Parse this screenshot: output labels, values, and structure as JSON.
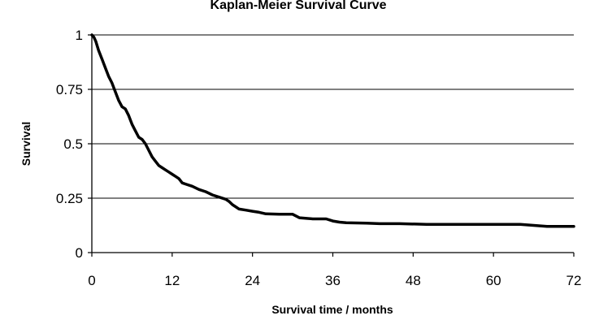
{
  "chart_data": {
    "type": "line",
    "title": "Kaplan-Meier Survival Curve",
    "xlabel": "Survival time / months",
    "ylabel": "Survival",
    "xlim": [
      0,
      72
    ],
    "ylim": [
      0,
      1
    ],
    "xticks": [
      "0",
      "12",
      "24",
      "36",
      "48",
      "60",
      "72"
    ],
    "yticks": [
      "1",
      "0.75",
      "0.5",
      "0.25",
      "0"
    ],
    "grid": "horizontal",
    "legend": "none",
    "line_color": "#000000",
    "series": [
      {
        "name": "",
        "points": [
          [
            0,
            1.0
          ],
          [
            0.3,
            0.99
          ],
          [
            0.6,
            0.97
          ],
          [
            1.0,
            0.93
          ],
          [
            1.5,
            0.89
          ],
          [
            2.0,
            0.85
          ],
          [
            2.5,
            0.81
          ],
          [
            3.0,
            0.78
          ],
          [
            3.5,
            0.74
          ],
          [
            4.0,
            0.7
          ],
          [
            4.5,
            0.67
          ],
          [
            5.0,
            0.66
          ],
          [
            5.5,
            0.63
          ],
          [
            6.0,
            0.59
          ],
          [
            6.5,
            0.56
          ],
          [
            7.0,
            0.53
          ],
          [
            7.5,
            0.52
          ],
          [
            8.0,
            0.5
          ],
          [
            8.5,
            0.47
          ],
          [
            9.0,
            0.44
          ],
          [
            9.5,
            0.42
          ],
          [
            10.0,
            0.4
          ],
          [
            10.5,
            0.39
          ],
          [
            11.0,
            0.38
          ],
          [
            11.5,
            0.37
          ],
          [
            12.0,
            0.36
          ],
          [
            12.5,
            0.35
          ],
          [
            13.0,
            0.34
          ],
          [
            13.5,
            0.32
          ],
          [
            14.0,
            0.315
          ],
          [
            15.0,
            0.305
          ],
          [
            16.0,
            0.29
          ],
          [
            17.0,
            0.28
          ],
          [
            18.0,
            0.265
          ],
          [
            19.0,
            0.255
          ],
          [
            20.0,
            0.245
          ],
          [
            20.5,
            0.235
          ],
          [
            21.0,
            0.22
          ],
          [
            22.0,
            0.2
          ],
          [
            23.0,
            0.195
          ],
          [
            24.0,
            0.19
          ],
          [
            25.0,
            0.185
          ],
          [
            26.0,
            0.178
          ],
          [
            28.0,
            0.176
          ],
          [
            30.0,
            0.176
          ],
          [
            31.0,
            0.16
          ],
          [
            33.0,
            0.155
          ],
          [
            35.0,
            0.155
          ],
          [
            36.0,
            0.145
          ],
          [
            37.0,
            0.14
          ],
          [
            38.0,
            0.137
          ],
          [
            41.0,
            0.135
          ],
          [
            43.0,
            0.133
          ],
          [
            46.0,
            0.133
          ],
          [
            50.0,
            0.13
          ],
          [
            56.0,
            0.13
          ],
          [
            64.0,
            0.13
          ],
          [
            66.0,
            0.125
          ],
          [
            68.0,
            0.12
          ],
          [
            72.0,
            0.12
          ]
        ]
      }
    ]
  }
}
